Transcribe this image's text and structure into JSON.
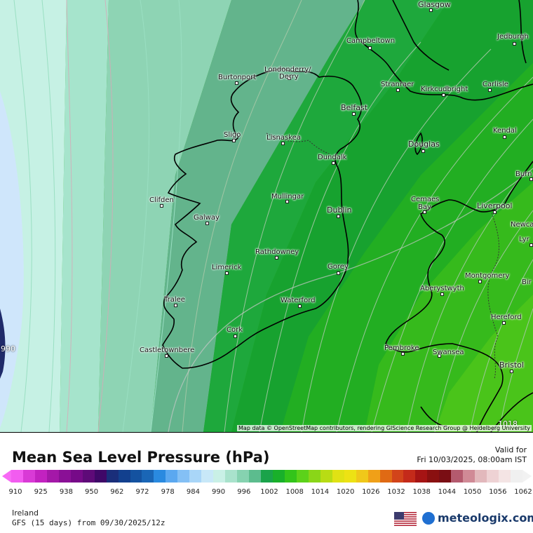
{
  "map": {
    "credit": "Map data © OpenStreetMap contributors, rendering GIScience Research Group @ Heidelberg University",
    "edge_labels": [
      "990",
      "1018"
    ],
    "cities": [
      {
        "name": "Glasgow"
      },
      {
        "name": "Jedburgh"
      },
      {
        "name": "Campbeltown"
      },
      {
        "name": "Burtonport"
      },
      {
        "name": "Londonderry/"
      },
      {
        "name": "Derry"
      },
      {
        "name": "Stranraer"
      },
      {
        "name": "Kirkcudbright"
      },
      {
        "name": "Carlisle"
      },
      {
        "name": "Belfast"
      },
      {
        "name": "Sligo"
      },
      {
        "name": "Lisnaskea"
      },
      {
        "name": "Kendal"
      },
      {
        "name": "Douglas"
      },
      {
        "name": "Dundalk"
      },
      {
        "name": "Burn"
      },
      {
        "name": "Clifden"
      },
      {
        "name": "Mullingar"
      },
      {
        "name": "Cemaes"
      },
      {
        "name": "Bay"
      },
      {
        "name": "Liverpool"
      },
      {
        "name": "Dublin"
      },
      {
        "name": "Galway"
      },
      {
        "name": "Newca"
      },
      {
        "name": "Lyr"
      },
      {
        "name": "Rathdowney"
      },
      {
        "name": "Limerick"
      },
      {
        "name": "Gorey"
      },
      {
        "name": "Montgomery"
      },
      {
        "name": "Bir"
      },
      {
        "name": "Aberystwyth"
      },
      {
        "name": "Tralee"
      },
      {
        "name": "Waterford"
      },
      {
        "name": "Hereford"
      },
      {
        "name": "Cork"
      },
      {
        "name": "Castletownbere"
      },
      {
        "name": "Pembroke"
      },
      {
        "name": "Swansea"
      },
      {
        "name": "Bristol"
      }
    ]
  },
  "legend": {
    "title": "Mean Sea Level Pressure (hPa)",
    "valid_label": "Valid for",
    "valid_time": "Fri 10/03/2025, 08:00am IST",
    "ticks": [
      "910",
      "925",
      "938",
      "950",
      "962",
      "972",
      "978",
      "984",
      "990",
      "996",
      "1002",
      "1008",
      "1014",
      "1020",
      "1026",
      "1032",
      "1038",
      "1044",
      "1050",
      "1056",
      "1062"
    ],
    "colors": [
      "#f25cf0",
      "#d93ad6",
      "#c222c0",
      "#a418a8",
      "#8a1096",
      "#760a88",
      "#5e0a78",
      "#3f0868",
      "#1a2e7a",
      "#12408e",
      "#1452a0",
      "#1a66b6",
      "#2a8ae0",
      "#5ba8f0",
      "#84c0f5",
      "#a9d6f8",
      "#c8e8f8",
      "#c9f0e6",
      "#a9e2cc",
      "#86d2b0",
      "#5cbc8e",
      "#1aa34a",
      "#19b02a",
      "#33c41a",
      "#5cd21a",
      "#8ad618",
      "#b8dc14",
      "#e0e214",
      "#ede214",
      "#f0c81a",
      "#f0a018",
      "#e06a14",
      "#d2441a",
      "#c42a1a",
      "#a61414",
      "#8a1010",
      "#7a0e14",
      "#b45a6e",
      "#d08a96",
      "#e2b8bc",
      "#eed2d4",
      "#f4e4e4",
      "#f0f0f0"
    ],
    "region": "Ireland",
    "model": "GFS (15 days) from  09/30/2025/12z",
    "brand": "meteologix.com",
    "flag_icon": "us-flag-icon"
  }
}
